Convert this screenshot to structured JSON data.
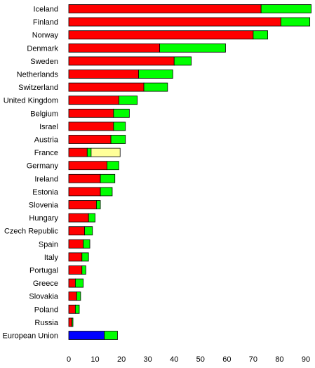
{
  "chart_data": {
    "type": "bar",
    "orientation": "horizontal",
    "stacked": true,
    "categories": [
      "Iceland",
      "Finland",
      "Norway",
      "Denmark",
      "Sweden",
      "Netherlands",
      "Switzerland",
      "United Kingdom",
      "Belgium",
      "Israel",
      "Austria",
      "France",
      "Germany",
      "Ireland",
      "Estonia",
      "Slovenia",
      "Hungary",
      "Czech Republic",
      "Spain",
      "Italy",
      "Portugal",
      "Greece",
      "Slovakia",
      "Poland",
      "Russia",
      "European Union"
    ],
    "series": [
      {
        "color": "#ff0000",
        "values": [
          73,
          80.5,
          70,
          34.5,
          40,
          26.5,
          28.5,
          19,
          17,
          17,
          16,
          7,
          14.5,
          12,
          12,
          10.5,
          7.5,
          6,
          5.5,
          5,
          5,
          2.5,
          3,
          2.5,
          1.2,
          0
        ]
      },
      {
        "color": "#0000ff",
        "values": [
          0,
          0,
          0,
          0,
          0,
          0,
          0,
          0,
          0,
          0,
          0,
          0,
          0,
          0,
          0,
          0,
          0,
          0,
          0,
          0,
          0,
          0,
          0,
          0,
          0,
          13.5
        ]
      },
      {
        "color": "#00ff00",
        "values": [
          19,
          11,
          5.5,
          25,
          6.5,
          13,
          9,
          7,
          6,
          4.5,
          5.5,
          1.5,
          4.5,
          5.5,
          4.5,
          1.5,
          2.5,
          3,
          2.5,
          2.5,
          1.5,
          3,
          1.5,
          1.5,
          0.4,
          5
        ]
      },
      {
        "color": "#ffff99",
        "values": [
          0,
          0,
          0,
          0,
          0,
          0,
          0,
          0,
          0,
          0,
          0,
          11,
          0,
          0,
          0,
          0,
          0,
          0,
          0,
          0,
          0,
          0,
          0,
          0,
          0,
          0
        ]
      }
    ],
    "x_ticks": [
      0,
      10,
      20,
      30,
      40,
      50,
      60,
      70,
      80,
      90
    ],
    "xlim": [
      0,
      95
    ],
    "grid": false,
    "legend": "none"
  }
}
